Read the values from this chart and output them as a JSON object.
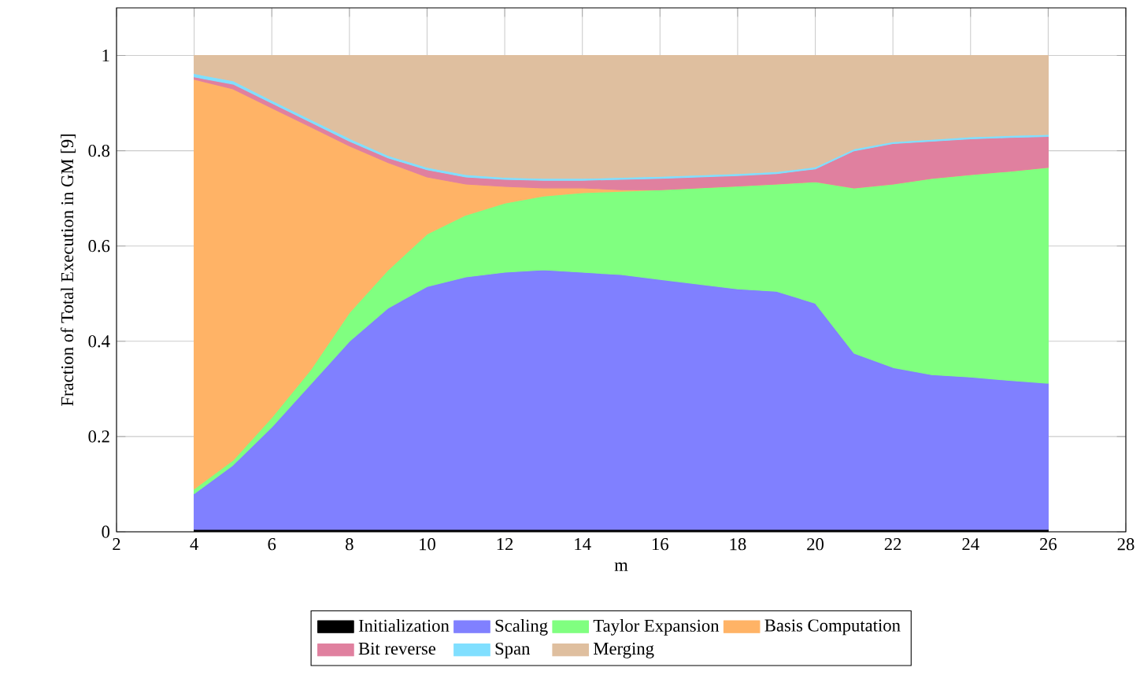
{
  "chart_data": {
    "type": "area",
    "stacked": true,
    "xlabel": "m",
    "ylabel": "Fraction of Total Execution in GM [9]",
    "x": [
      4,
      5,
      6,
      7,
      8,
      9,
      10,
      11,
      12,
      13,
      14,
      15,
      16,
      17,
      18,
      19,
      20,
      21,
      22,
      23,
      24,
      25,
      26
    ],
    "series": [
      {
        "name": "Initialization",
        "color": "#000000",
        "values": [
          0.005,
          0.005,
          0.005,
          0.005,
          0.005,
          0.005,
          0.005,
          0.005,
          0.005,
          0.005,
          0.005,
          0.005,
          0.005,
          0.005,
          0.005,
          0.005,
          0.005,
          0.005,
          0.005,
          0.005,
          0.005,
          0.005,
          0.005
        ]
      },
      {
        "name": "Scaling",
        "color": "#8080ff",
        "values": [
          0.075,
          0.135,
          0.215,
          0.305,
          0.395,
          0.465,
          0.51,
          0.53,
          0.54,
          0.545,
          0.54,
          0.535,
          0.525,
          0.515,
          0.505,
          0.5,
          0.475,
          0.37,
          0.34,
          0.325,
          0.32,
          0.313,
          0.307
        ]
      },
      {
        "name": "Taylor Expansion",
        "color": "#80ff80",
        "values": [
          0.01,
          0.01,
          0.02,
          0.03,
          0.06,
          0.08,
          0.11,
          0.13,
          0.145,
          0.155,
          0.167,
          0.175,
          0.188,
          0.202,
          0.216,
          0.225,
          0.255,
          0.347,
          0.385,
          0.412,
          0.425,
          0.439,
          0.453
        ]
      },
      {
        "name": "Basis Computation",
        "color": "#ffb366",
        "values": [
          0.86,
          0.78,
          0.65,
          0.51,
          0.35,
          0.225,
          0.12,
          0.065,
          0.035,
          0.017,
          0.01,
          0.003,
          0,
          0,
          0,
          0,
          0,
          0,
          0,
          0,
          0,
          0,
          0
        ]
      },
      {
        "name": "Bit reverse",
        "color": "#e0809f",
        "values": [
          0.005,
          0.01,
          0.01,
          0.01,
          0.01,
          0.01,
          0.015,
          0.015,
          0.015,
          0.016,
          0.016,
          0.022,
          0.024,
          0.023,
          0.022,
          0.022,
          0.027,
          0.078,
          0.085,
          0.078,
          0.075,
          0.071,
          0.065
        ]
      },
      {
        "name": "Span",
        "color": "#80dfff",
        "values": [
          0.007,
          0.007,
          0.006,
          0.006,
          0.006,
          0.005,
          0.005,
          0.005,
          0.004,
          0.004,
          0.004,
          0.004,
          0.004,
          0.004,
          0.004,
          0.004,
          0.004,
          0.004,
          0.004,
          0.004,
          0.004,
          0.004,
          0.004
        ]
      },
      {
        "name": "Merging",
        "color": "#dfbf9f",
        "values": [
          0.038,
          0.053,
          0.094,
          0.134,
          0.174,
          0.21,
          0.235,
          0.25,
          0.256,
          0.258,
          0.258,
          0.256,
          0.254,
          0.251,
          0.248,
          0.244,
          0.234,
          0.196,
          0.181,
          0.176,
          0.171,
          0.168,
          0.166
        ]
      }
    ],
    "xlim": [
      2,
      28
    ],
    "xticks": [
      2,
      4,
      6,
      8,
      10,
      12,
      14,
      16,
      18,
      20,
      22,
      24,
      26,
      28
    ],
    "ylim": [
      0,
      1.1
    ],
    "yticks": [
      0,
      0.2,
      0.4,
      0.6,
      0.8,
      1
    ],
    "grid": true,
    "legend": "bottom"
  }
}
